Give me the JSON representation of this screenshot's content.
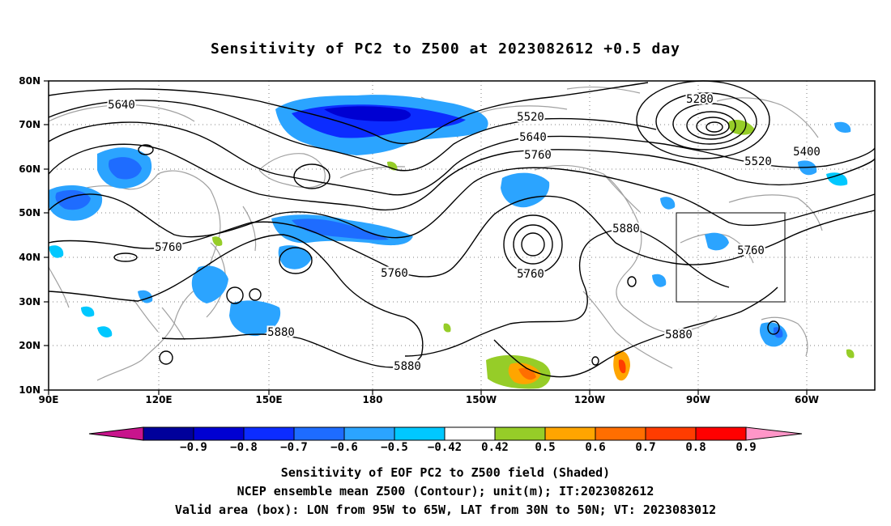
{
  "title": "Sensitivity of PC2 to Z500 at 2023082612 +0.5 day",
  "map": {
    "lon_ticks": [
      "90E",
      "120E",
      "150E",
      "180",
      "150W",
      "120W",
      "90W",
      "60W"
    ],
    "lat_ticks": [
      "80N",
      "70N",
      "60N",
      "50N",
      "40N",
      "30N",
      "20N",
      "10N"
    ],
    "contour_labels": [
      "5640",
      "5520",
      "5640",
      "5760",
      "5280",
      "5400",
      "5520",
      "5760",
      "5760",
      "5760",
      "5880",
      "5880",
      "5880",
      "5880",
      "5760"
    ],
    "valid_box": {
      "lon": [
        "95W",
        "65W"
      ],
      "lat": [
        "30N",
        "50N"
      ]
    }
  },
  "colorbar": {
    "labels": [
      "-0.9",
      "-0.8",
      "-0.7",
      "-0.6",
      "-0.5",
      "-0.42",
      "0.42",
      "0.5",
      "0.6",
      "0.7",
      "0.8",
      "0.9"
    ],
    "colors": [
      "#00009b",
      "#0000d2",
      "#0c2cff",
      "#1e6cff",
      "#2ba4ff",
      "#00c8ff",
      "#ffffff",
      "#96cd28",
      "#ffa500",
      "#ff6e00",
      "#ff3c00",
      "#ff0000"
    ],
    "under_color": "#c8148c",
    "over_color": "#ff96c8"
  },
  "captions": [
    "Sensitivity of EOF PC2 to Z500 field (Shaded)",
    "NCEP ensemble mean Z500 (Contour); unit(m); IT:2023082612",
    "Valid area (box): LON from 95W to 65W, LAT from 30N to 50N; VT: 2023083012"
  ]
}
